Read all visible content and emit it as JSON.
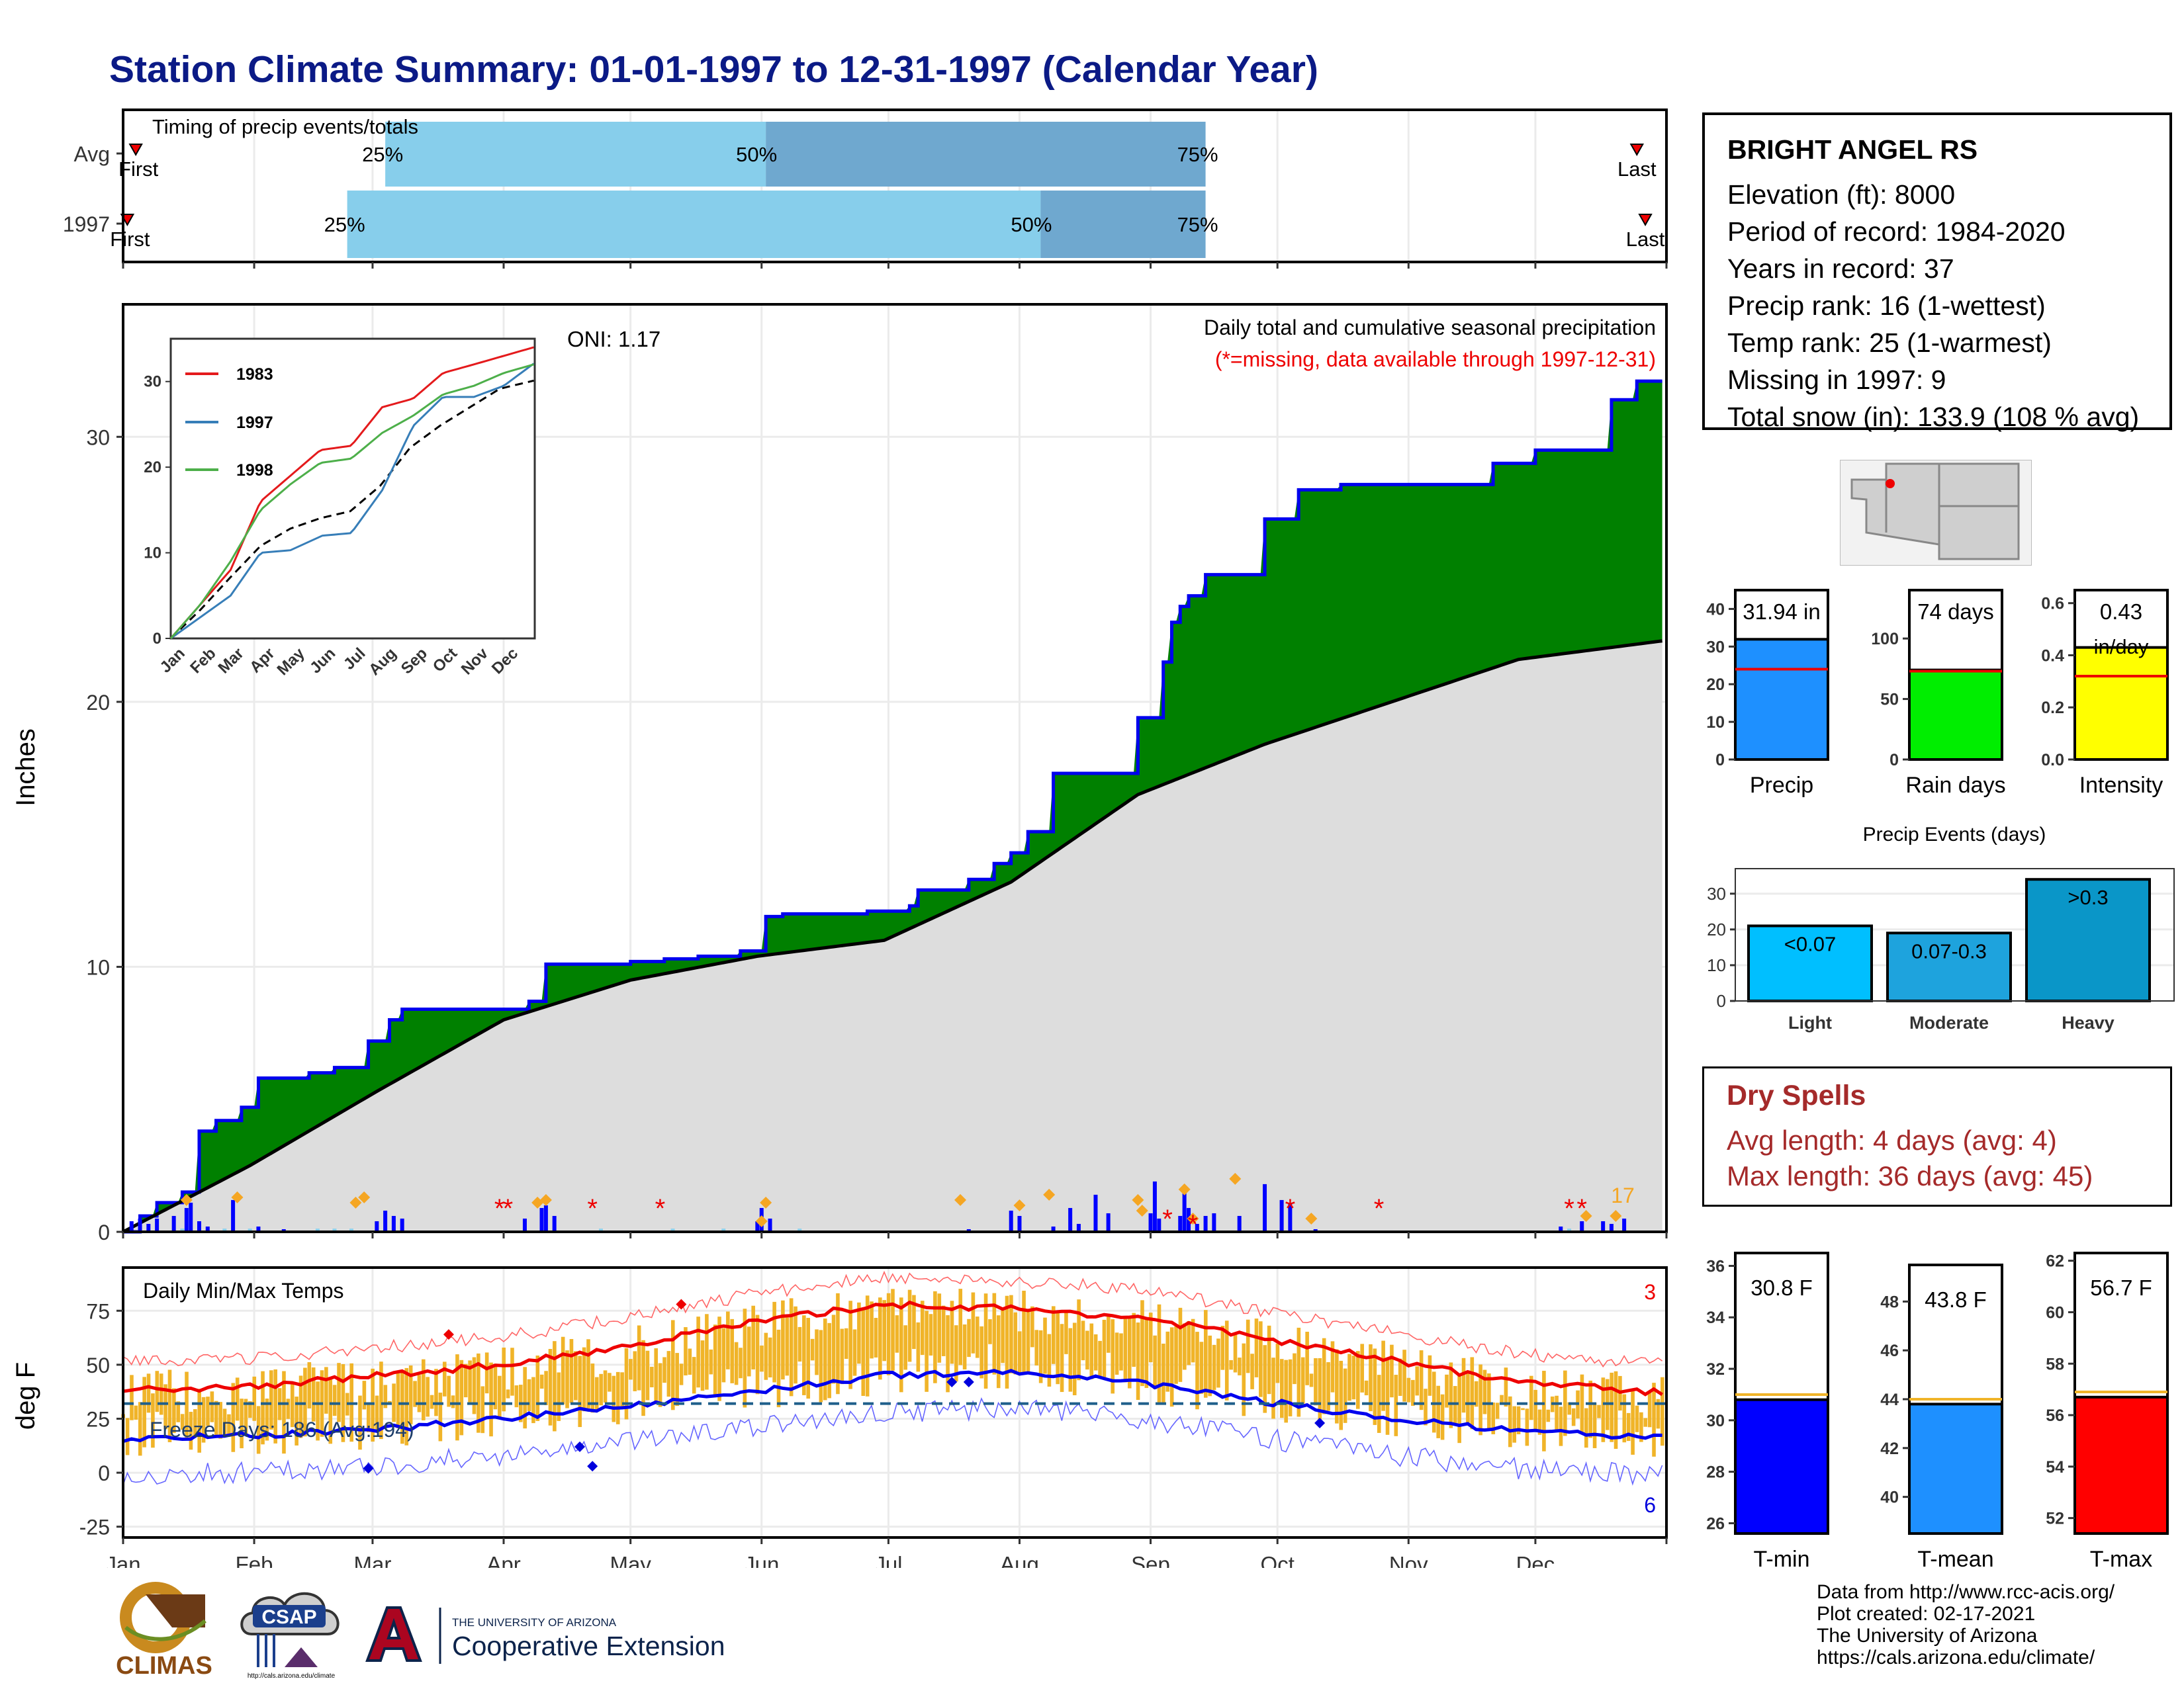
{
  "title": "Station Climate Summary: 01-01-1997 to 12-31-1997 (Calendar Year)",
  "months": [
    "Jan",
    "Feb",
    "Mar",
    "Apr",
    "May",
    "Jun",
    "Jul",
    "Aug",
    "Sep",
    "Oct",
    "Nov",
    "Dec"
  ],
  "timing": {
    "title": "Timing of precip events/totals",
    "rows": [
      {
        "label": "Avg",
        "q25": "25%",
        "q50": "50%",
        "q75": "75%",
        "first": "First",
        "last": "Last",
        "q25_doy": 62,
        "q50_doy": 152,
        "q75_doy": 256,
        "first_doy": 3,
        "last_doy": 358
      },
      {
        "label": "1997",
        "q25": "25%",
        "q50": "50%",
        "q75": "75%",
        "first": "First",
        "last": "Last",
        "q25_doy": 53,
        "q50_doy": 217,
        "q75_doy": 256,
        "first_doy": 1,
        "last_doy": 360
      }
    ]
  },
  "precip_panel": {
    "ylabel": "Inches",
    "subtitle": "Daily total and cumulative seasonal precipitation",
    "missing_note": "(*=missing, data available through 1997-12-31)",
    "oni": "ONI: 1.17",
    "count_label": "17",
    "y_ticks": [
      "0",
      "10",
      "20",
      "30"
    ],
    "ylim": [
      0,
      35
    ]
  },
  "inset": {
    "y_ticks": [
      "0",
      "10",
      "20",
      "30"
    ],
    "legend": [
      "1983",
      "1997",
      "1998"
    ],
    "colors": {
      "1983": "#e41a1c",
      "1997": "#377eb8",
      "1998": "#4daf4a"
    }
  },
  "temp_panel": {
    "ylabel": "deg F",
    "title": "Daily Min/Max Temps",
    "freeze": "Freeze Days: 186 (Avg:194)",
    "max_count": "3",
    "min_count": "6",
    "y_ticks": [
      "-25",
      "0",
      "25",
      "50",
      "75"
    ],
    "ylim": [
      -30,
      95
    ]
  },
  "station": {
    "name": "BRIGHT ANGEL RS",
    "lines": [
      "Elevation (ft): 8000",
      "Period of record: 1984-2020",
      "Years in record: 37",
      "Precip rank: 16 (1-wettest)",
      "Temp rank: 25 (1-warmest)",
      "Missing in 1997: 9",
      "Total snow (in): 133.9 (108 % avg)"
    ]
  },
  "summary_bars": [
    {
      "name": "Precip",
      "label": "31.94 in",
      "value": 31.94,
      "avg": 24,
      "max": 45,
      "ticks": [
        "0",
        "10",
        "20",
        "30",
        "40"
      ],
      "tick_vals": [
        0,
        10,
        20,
        30,
        40
      ],
      "color": "#1e90ff"
    },
    {
      "name": "Rain days",
      "label": "74 days",
      "value": 74,
      "avg": 73,
      "max": 140,
      "ticks": [
        "0",
        "50",
        "100"
      ],
      "tick_vals": [
        0,
        50,
        100
      ],
      "color": "#00ee00"
    },
    {
      "name": "Intensity",
      "label": "0.43",
      "label2": "in/day",
      "value": 0.43,
      "avg": 0.32,
      "max": 0.65,
      "ticks": [
        "0.0",
        "0.2",
        "0.4",
        "0.6"
      ],
      "tick_vals": [
        0,
        0.2,
        0.4,
        0.6
      ],
      "color": "#ffff00"
    }
  ],
  "events": {
    "title": "Precip Events (days)",
    "categories": [
      "Light",
      "Moderate",
      "Heavy"
    ],
    "labels": [
      "<0.07",
      "0.07-0.3",
      ">0.3"
    ],
    "values": [
      21,
      19,
      34
    ],
    "colors": [
      "#00bfff",
      "#1ea3dd",
      "#0a96c8"
    ],
    "ticks": [
      "0",
      "10",
      "20",
      "30"
    ]
  },
  "dry_spells": {
    "title": "Dry Spells",
    "avg": "Avg length: 4 days (avg: 4)",
    "max": "Max length: 36 days (avg: 45)"
  },
  "temp_bars": [
    {
      "name": "T-min",
      "label": "30.8 F",
      "value": 30.8,
      "avg": 31.0,
      "min": 25.6,
      "max": 36.5,
      "ticks": [
        "26",
        "28",
        "30",
        "32",
        "34",
        "36"
      ],
      "tick_vals": [
        26,
        28,
        30,
        32,
        34,
        36
      ],
      "color": "#0000ff"
    },
    {
      "name": "T-mean",
      "label": "43.8 F",
      "value": 43.8,
      "avg": 44.0,
      "min": 38.5,
      "max": 49.5,
      "ticks": [
        "40",
        "42",
        "44",
        "46",
        "48"
      ],
      "tick_vals": [
        40,
        42,
        44,
        46,
        48
      ],
      "color": "#1e90ff"
    },
    {
      "name": "T-max",
      "label": "56.7 F",
      "value": 56.7,
      "avg": 56.9,
      "min": 51.4,
      "max": 62.3,
      "ticks": [
        "52",
        "54",
        "56",
        "58",
        "60",
        "62"
      ],
      "tick_vals": [
        52,
        54,
        56,
        58,
        60,
        62
      ],
      "color": "#ff0000"
    }
  ],
  "credits": [
    "Data from http://www.rcc-acis.org/",
    "Plot created: 02-17-2021",
    "The University of Arizona",
    "https://cals.arizona.edu/climate/"
  ],
  "logos": {
    "climas": "CLIMAS",
    "csap": "CSAP",
    "csap_url": "http://cals.arizona.edu/climate",
    "ua_small": "THE UNIVERSITY OF ARIZONA",
    "ua_big": "Cooperative Extension"
  },
  "chart_data": [
    {
      "type": "area",
      "title": "Daily total and cumulative seasonal precipitation",
      "ylabel": "Inches",
      "ylim": [
        0,
        35
      ],
      "series": [
        {
          "name": "1997",
          "x_doy": [
            0,
            4,
            8,
            14,
            18,
            22,
            28,
            32,
            38,
            44,
            50,
            58,
            63,
            66,
            72,
            78,
            86,
            96,
            100,
            104,
            112,
            120,
            128,
            136,
            140,
            146,
            152,
            156,
            160,
            166,
            176,
            186,
            188,
            200,
            206,
            210,
            214,
            220,
            225,
            236,
            240,
            246,
            248,
            250,
            252,
            256,
            264,
            270,
            278,
            288,
            300,
            312,
            324,
            334,
            344,
            352,
            358,
            364
          ],
          "values": [
            0,
            0.6,
            1.1,
            1.5,
            3.8,
            4.2,
            4.7,
            5.8,
            5.8,
            6.0,
            6.2,
            7.2,
            8.0,
            8.4,
            8.4,
            8.4,
            8.4,
            8.7,
            10.1,
            10.1,
            10.1,
            10.2,
            10.3,
            10.4,
            10.4,
            10.6,
            11.9,
            12.0,
            12.0,
            12.0,
            12.1,
            12.3,
            12.9,
            13.3,
            13.9,
            14.3,
            15.1,
            17.3,
            17.3,
            17.3,
            19.4,
            21.5,
            23.0,
            23.6,
            24.0,
            24.8,
            24.8,
            26.9,
            28.0,
            28.2,
            28.2,
            28.2,
            29.0,
            29.5,
            29.5,
            31.4,
            32.1,
            32.1
          ]
        },
        {
          "name": "Average",
          "x_doy": [
            0,
            30,
            60,
            90,
            120,
            150,
            180,
            210,
            240,
            270,
            300,
            330,
            364
          ],
          "values": [
            0,
            2.5,
            5.3,
            8.0,
            9.5,
            10.4,
            11.0,
            13.2,
            16.5,
            18.4,
            20.0,
            21.6,
            22.3
          ]
        }
      ]
    },
    {
      "type": "line",
      "series": [
        {
          "name": "1997",
          "x_doy": [
            0,
            60,
            90,
            120,
            152,
            181,
            212,
            243,
            273,
            304,
            334,
            364
          ],
          "values": [
            0,
            5,
            10,
            10.3,
            12,
            12.3,
            17.3,
            24.8,
            28.2,
            28.2,
            29.5,
            32.1
          ]
        },
        {
          "name": "1983",
          "x_doy": [
            0,
            30,
            60,
            90,
            120,
            150,
            181,
            212,
            243,
            273,
            304,
            334,
            364
          ],
          "values": [
            0,
            4,
            8,
            16,
            19,
            22,
            22.5,
            27,
            28,
            31,
            32,
            33,
            34
          ]
        },
        {
          "name": "1998",
          "x_doy": [
            0,
            30,
            60,
            90,
            120,
            150,
            181,
            212,
            243,
            273,
            304,
            334,
            364
          ],
          "values": [
            0,
            4,
            9,
            15,
            18,
            20.5,
            21,
            24,
            26,
            28.5,
            29.5,
            31,
            32
          ]
        }
      ]
    },
    {
      "type": "line",
      "title": "Daily Min/Max Temps",
      "ylabel": "deg F",
      "ylim": [
        -30,
        95
      ],
      "series": [
        {
          "name": "Avg max",
          "x_doy": [
            0,
            30,
            60,
            90,
            120,
            150,
            180,
            210,
            240,
            270,
            300,
            330,
            364
          ],
          "values": [
            38,
            40,
            45,
            50,
            59,
            70,
            78,
            76,
            72,
            62,
            52,
            42,
            37
          ]
        },
        {
          "name": "Avg min",
          "x_doy": [
            0,
            30,
            60,
            90,
            120,
            150,
            180,
            210,
            240,
            270,
            300,
            330,
            364
          ],
          "values": [
            16,
            17,
            20,
            25,
            31,
            38,
            45,
            47,
            42,
            33,
            25,
            19,
            16
          ]
        }
      ]
    },
    {
      "type": "bar",
      "categories": [
        "Precip",
        "Rain days",
        "Intensity"
      ],
      "values": [
        31.94,
        74,
        0.43
      ]
    },
    {
      "type": "bar",
      "title": "Precip Events (days)",
      "categories": [
        "Light",
        "Moderate",
        "Heavy"
      ],
      "values": [
        21,
        19,
        34
      ]
    },
    {
      "type": "bar",
      "categories": [
        "T-min",
        "T-mean",
        "T-max"
      ],
      "values": [
        30.8,
        43.8,
        56.7
      ]
    }
  ]
}
